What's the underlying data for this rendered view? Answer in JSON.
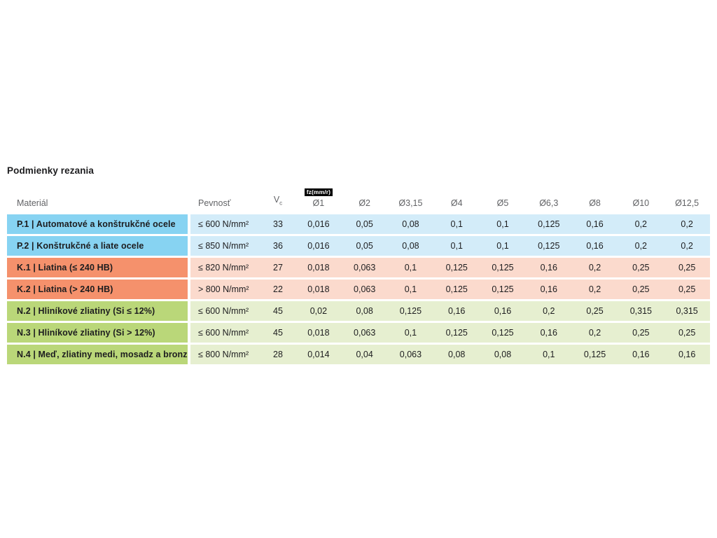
{
  "section": {
    "title": "Podmienky rezania"
  },
  "table": {
    "headers": {
      "material": "Materiál",
      "strength": "Pevnosť",
      "vc_base": "V",
      "vc_sub": "c",
      "feed_badge": "fz(mm/r)",
      "diameters": [
        "Ø1",
        "Ø2",
        "Ø3,15",
        "Ø4",
        "Ø5",
        "Ø6,3",
        "Ø8",
        "Ø10",
        "Ø12,5"
      ]
    },
    "rows": [
      {
        "group": "blue",
        "material": "P.1 | Automatové a konštrukčné ocele",
        "strength": "≤ 600 N/mm²",
        "vc": "33",
        "feeds": [
          "0,016",
          "0,05",
          "0,08",
          "0,1",
          "0,1",
          "0,125",
          "0,16",
          "0,2",
          "0,2"
        ]
      },
      {
        "group": "blue",
        "material": "P.2 | Konštrukčné a liate ocele",
        "strength": "≤ 850 N/mm²",
        "vc": "36",
        "feeds": [
          "0,016",
          "0,05",
          "0,08",
          "0,1",
          "0,1",
          "0,125",
          "0,16",
          "0,2",
          "0,2"
        ]
      },
      {
        "group": "salmon",
        "material": "K.1 | Liatina (≤ 240 HB)",
        "strength": "≤ 820 N/mm²",
        "vc": "27",
        "feeds": [
          "0,018",
          "0,063",
          "0,1",
          "0,125",
          "0,125",
          "0,16",
          "0,2",
          "0,25",
          "0,25"
        ]
      },
      {
        "group": "salmon",
        "material": "K.2 | Liatina (> 240 HB)",
        "strength": "> 800 N/mm²",
        "vc": "22",
        "feeds": [
          "0,018",
          "0,063",
          "0,1",
          "0,125",
          "0,125",
          "0,16",
          "0,2",
          "0,25",
          "0,25"
        ]
      },
      {
        "group": "green",
        "material": "N.2 | Hliníkové zliatiny (Si ≤ 12%)",
        "strength": "≤ 600 N/mm²",
        "vc": "45",
        "feeds": [
          "0,02",
          "0,08",
          "0,125",
          "0,16",
          "0,16",
          "0,2",
          "0,25",
          "0,315",
          "0,315"
        ]
      },
      {
        "group": "green",
        "material": "N.3 | Hliníkové zliatiny (Si > 12%)",
        "strength": "≤ 600 N/mm²",
        "vc": "45",
        "feeds": [
          "0,018",
          "0,063",
          "0,1",
          "0,125",
          "0,125",
          "0,16",
          "0,2",
          "0,25",
          "0,25"
        ]
      },
      {
        "group": "green",
        "material": "N.4 | Meď, zliatiny medi, mosadz a bronz",
        "strength": "≤ 800 N/mm²",
        "vc": "28",
        "feeds": [
          "0,014",
          "0,04",
          "0,063",
          "0,08",
          "0,08",
          "0,1",
          "0,125",
          "0,16",
          "0,16"
        ]
      }
    ]
  },
  "colors": {
    "blue_strong": "#87d3f2",
    "blue_light": "#d3ecf9",
    "salmon_strong": "#f5916c",
    "salmon_light": "#fbdacd",
    "green_strong": "#bad779",
    "green_light": "#e6efd0",
    "text_dark": "#1d1d1f",
    "header_gray": "#626366",
    "badge_bg": "#000000",
    "badge_text": "#ffffff"
  },
  "chart_data": {
    "type": "table",
    "title": "Podmienky rezania",
    "feed_unit": "fz(mm/r)",
    "columns": [
      "Materiál",
      "Pevnosť",
      "Vc",
      "Ø1",
      "Ø2",
      "Ø3,15",
      "Ø4",
      "Ø5",
      "Ø6,3",
      "Ø8",
      "Ø10",
      "Ø12,5"
    ],
    "rows": [
      [
        "P.1 | Automatové a konštrukčné ocele",
        "≤ 600 N/mm²",
        "33",
        "0,016",
        "0,05",
        "0,08",
        "0,1",
        "0,1",
        "0,125",
        "0,16",
        "0,2",
        "0,2"
      ],
      [
        "P.2 | Konštrukčné a liate ocele",
        "≤ 850 N/mm²",
        "36",
        "0,016",
        "0,05",
        "0,08",
        "0,1",
        "0,1",
        "0,125",
        "0,16",
        "0,2",
        "0,2"
      ],
      [
        "K.1 | Liatina (≤ 240 HB)",
        "≤ 820 N/mm²",
        "27",
        "0,018",
        "0,063",
        "0,1",
        "0,125",
        "0,125",
        "0,16",
        "0,2",
        "0,25",
        "0,25"
      ],
      [
        "K.2 | Liatina (> 240 HB)",
        "> 800 N/mm²",
        "22",
        "0,018",
        "0,063",
        "0,1",
        "0,125",
        "0,125",
        "0,16",
        "0,2",
        "0,25",
        "0,25"
      ],
      [
        "N.2 | Hliníkové zliatiny (Si ≤ 12%)",
        "≤ 600 N/mm²",
        "45",
        "0,02",
        "0,08",
        "0,125",
        "0,16",
        "0,16",
        "0,2",
        "0,25",
        "0,315",
        "0,315"
      ],
      [
        "N.3 | Hliníkové zliatiny (Si > 12%)",
        "≤ 600 N/mm²",
        "45",
        "0,018",
        "0,063",
        "0,1",
        "0,125",
        "0,125",
        "0,16",
        "0,2",
        "0,25",
        "0,25"
      ],
      [
        "N.4 | Meď, zliatiny medi, mosadz a bronz",
        "≤ 800 N/mm²",
        "28",
        "0,014",
        "0,04",
        "0,063",
        "0,08",
        "0,08",
        "0,1",
        "0,125",
        "0,16",
        "0,16"
      ]
    ]
  }
}
